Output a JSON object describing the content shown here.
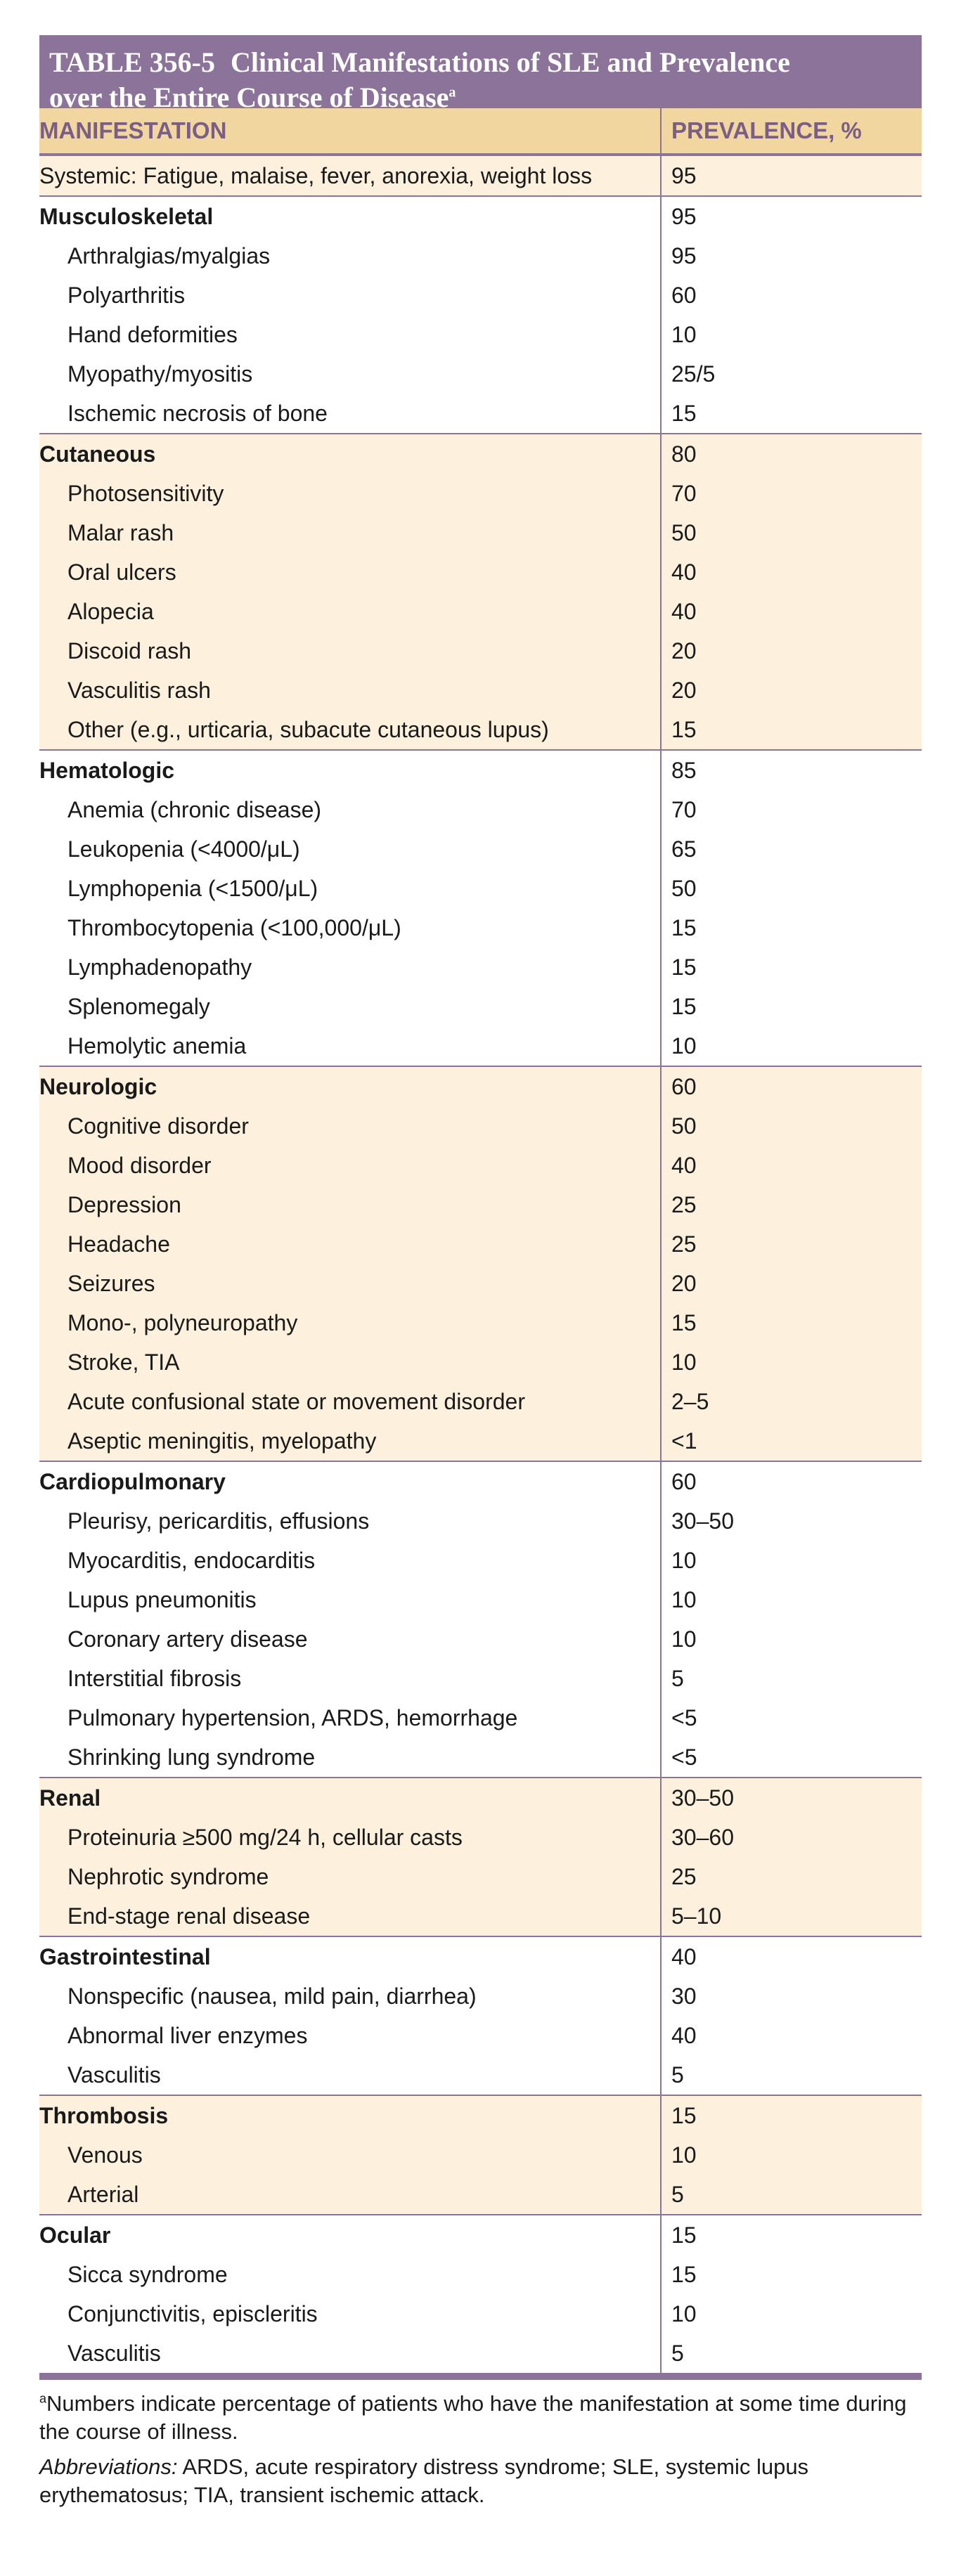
{
  "table": {
    "number": "TABLE 356-5",
    "title_line1": "Clinical Manifestations of SLE and Prevalence",
    "title_line2": "over the Entire Course of Disease",
    "title_sup": "a",
    "col_headers": [
      "MANIFESTATION",
      "PREVALENCE, %"
    ],
    "groups": [
      {
        "shaded": true,
        "rows": [
          {
            "type": "plain",
            "label": "Systemic: Fatigue, malaise, fever, anorexia, weight loss",
            "value": "95"
          }
        ]
      },
      {
        "shaded": false,
        "rows": [
          {
            "type": "cat",
            "label": "Musculoskeletal",
            "value": "95"
          },
          {
            "type": "sub",
            "label": "Arthralgias/myalgias",
            "value": "95"
          },
          {
            "type": "sub",
            "label": "Polyarthritis",
            "value": "60"
          },
          {
            "type": "sub",
            "label": "Hand deformities",
            "value": "10"
          },
          {
            "type": "sub",
            "label": "Myopathy/myositis",
            "value": "25/5"
          },
          {
            "type": "sub",
            "label": "Ischemic necrosis of bone",
            "value": "15"
          }
        ]
      },
      {
        "shaded": true,
        "rows": [
          {
            "type": "cat",
            "label": "Cutaneous",
            "value": "80"
          },
          {
            "type": "sub",
            "label": "Photosensitivity",
            "value": "70"
          },
          {
            "type": "sub",
            "label": "Malar rash",
            "value": "50"
          },
          {
            "type": "sub",
            "label": "Oral ulcers",
            "value": "40"
          },
          {
            "type": "sub",
            "label": "Alopecia",
            "value": "40"
          },
          {
            "type": "sub",
            "label": "Discoid rash",
            "value": "20"
          },
          {
            "type": "sub",
            "label": "Vasculitis rash",
            "value": "20"
          },
          {
            "type": "sub",
            "label": "Other (e.g., urticaria, subacute cutaneous lupus)",
            "value": "15"
          }
        ]
      },
      {
        "shaded": false,
        "rows": [
          {
            "type": "cat",
            "label": "Hematologic",
            "value": "85"
          },
          {
            "type": "sub",
            "label": "Anemia (chronic disease)",
            "value": "70"
          },
          {
            "type": "sub",
            "label": "Leukopenia (<4000/μL)",
            "value": "65"
          },
          {
            "type": "sub",
            "label": "Lymphopenia (<1500/μL)",
            "value": "50"
          },
          {
            "type": "sub",
            "label": "Thrombocytopenia (<100,000/μL)",
            "value": "15"
          },
          {
            "type": "sub",
            "label": "Lymphadenopathy",
            "value": "15"
          },
          {
            "type": "sub",
            "label": "Splenomegaly",
            "value": "15"
          },
          {
            "type": "sub",
            "label": "Hemolytic anemia",
            "value": "10"
          }
        ]
      },
      {
        "shaded": true,
        "rows": [
          {
            "type": "cat",
            "label": "Neurologic",
            "value": "60"
          },
          {
            "type": "sub",
            "label": "Cognitive disorder",
            "value": "50"
          },
          {
            "type": "sub",
            "label": "Mood disorder",
            "value": "40"
          },
          {
            "type": "sub",
            "label": "Depression",
            "value": "25"
          },
          {
            "type": "sub",
            "label": "Headache",
            "value": "25"
          },
          {
            "type": "sub",
            "label": "Seizures",
            "value": "20"
          },
          {
            "type": "sub",
            "label": "Mono-, polyneuropathy",
            "value": "15"
          },
          {
            "type": "sub",
            "label": "Stroke, TIA",
            "value": "10"
          },
          {
            "type": "sub",
            "label": "Acute confusional state or movement disorder",
            "value": "2–5"
          },
          {
            "type": "sub",
            "label": "Aseptic meningitis, myelopathy",
            "value": "<1"
          }
        ]
      },
      {
        "shaded": false,
        "rows": [
          {
            "type": "cat",
            "label": "Cardiopulmonary",
            "value": "60"
          },
          {
            "type": "sub",
            "label": "Pleurisy, pericarditis, effusions",
            "value": "30–50"
          },
          {
            "type": "sub",
            "label": "Myocarditis, endocarditis",
            "value": "10"
          },
          {
            "type": "sub",
            "label": "Lupus pneumonitis",
            "value": "10"
          },
          {
            "type": "sub",
            "label": "Coronary artery disease",
            "value": "10"
          },
          {
            "type": "sub",
            "label": "Interstitial fibrosis",
            "value": "5"
          },
          {
            "type": "sub",
            "label": "Pulmonary hypertension, ARDS, hemorrhage",
            "value": "<5"
          },
          {
            "type": "sub",
            "label": "Shrinking lung syndrome",
            "value": "<5"
          }
        ]
      },
      {
        "shaded": true,
        "rows": [
          {
            "type": "cat",
            "label": "Renal",
            "value": "30–50"
          },
          {
            "type": "sub",
            "label": "Proteinuria ≥500 mg/24 h, cellular casts",
            "value": "30–60"
          },
          {
            "type": "sub",
            "label": "Nephrotic syndrome",
            "value": "25"
          },
          {
            "type": "sub",
            "label": "End-stage renal disease",
            "value": "5–10"
          }
        ]
      },
      {
        "shaded": false,
        "rows": [
          {
            "type": "cat",
            "label": "Gastrointestinal",
            "value": "40"
          },
          {
            "type": "sub",
            "label": "Nonspecific (nausea, mild pain, diarrhea)",
            "value": "30"
          },
          {
            "type": "sub",
            "label": "Abnormal liver enzymes",
            "value": "40"
          },
          {
            "type": "sub",
            "label": "Vasculitis",
            "value": "5"
          }
        ]
      },
      {
        "shaded": true,
        "rows": [
          {
            "type": "cat",
            "label": "Thrombosis",
            "value": "15"
          },
          {
            "type": "sub",
            "label": "Venous",
            "value": "10"
          },
          {
            "type": "sub",
            "label": "Arterial",
            "value": "5"
          }
        ]
      },
      {
        "shaded": false,
        "rows": [
          {
            "type": "cat",
            "label": "Ocular",
            "value": "15"
          },
          {
            "type": "sub",
            "label": "Sicca syndrome",
            "value": "15"
          },
          {
            "type": "sub",
            "label": "Conjunctivitis, episcleritis",
            "value": "10"
          },
          {
            "type": "sub",
            "label": "Vasculitis",
            "value": "5"
          }
        ]
      }
    ],
    "footnote_sup": "a",
    "footnote_text": "Numbers indicate percentage of patients who have the manifestation at some time during the course of illness.",
    "abbreviations_label": "Abbreviations:",
    "abbreviations_text": " ARDS, acute respiratory distress syndrome; SLE, systemic lupus erythematosus; TIA, transient ischemic attack."
  },
  "colors": {
    "title_bg": "#8c7399",
    "header_bg": "#f1d79f",
    "shade_bg": "#fdf1dd",
    "rule": "#8c7399"
  }
}
